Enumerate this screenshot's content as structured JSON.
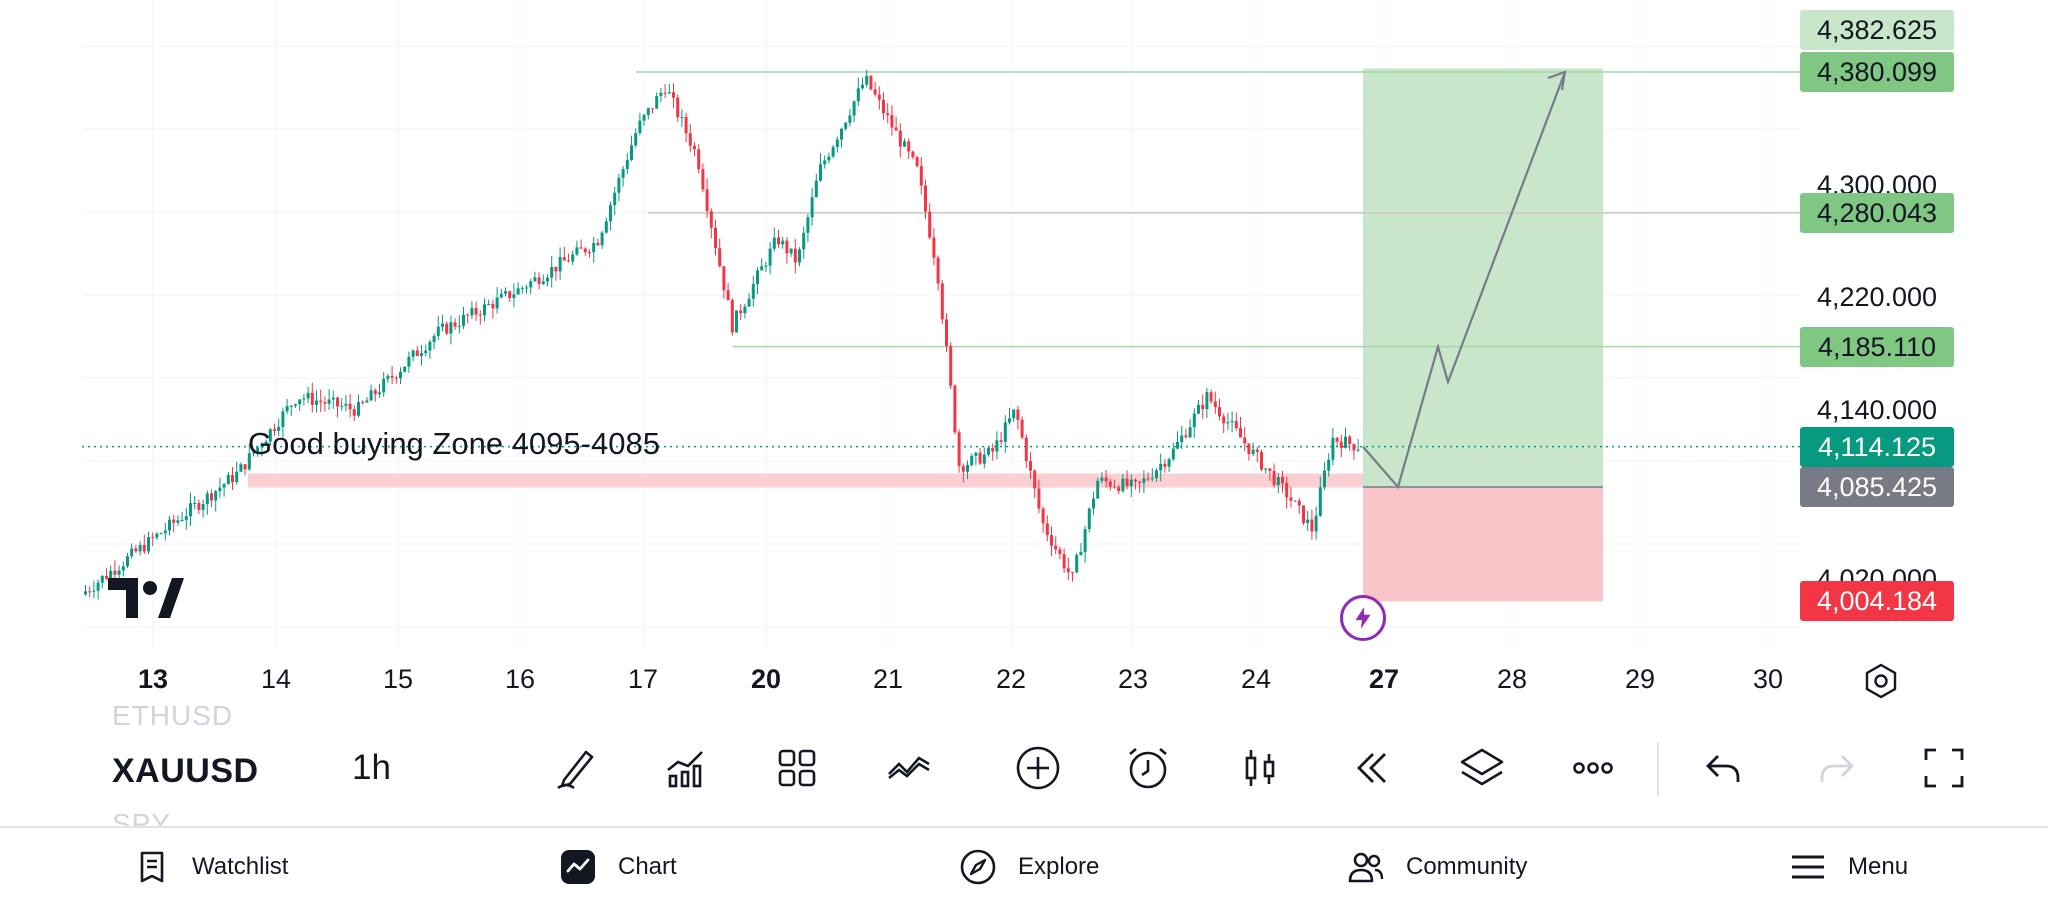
{
  "chart": {
    "symbol": "XAUUSD",
    "symbol_prev": "ETHUSD",
    "symbol_next": "SPY",
    "interval": "1h",
    "annotation": "Good buying Zone 4095-4085",
    "price_axis_plain": [
      {
        "text": "4,300.000",
        "price": 4300
      },
      {
        "text": "4,220.000",
        "price": 4220
      },
      {
        "text": "4,140.000",
        "price": 4140
      },
      {
        "text": "4,020.000",
        "price": 4020
      }
    ],
    "price_tags": [
      {
        "text": "4,382.625",
        "price": 4382.625,
        "bg": "#c8e6c9",
        "fg": "#131722"
      },
      {
        "text": "4,380.099",
        "price": 4380.099,
        "bg": "#81c784",
        "fg": "#131722"
      },
      {
        "text": "4,280.043",
        "price": 4280.043,
        "bg": "#81c784",
        "fg": "#131722"
      },
      {
        "text": "4,185.110",
        "price": 4185.11,
        "bg": "#81c784",
        "fg": "#131722"
      },
      {
        "text": "4,114.125",
        "price": 4114.125,
        "bg": "#089981",
        "fg": "#ffffff"
      },
      {
        "text": "4,085.425",
        "price": 4085.425,
        "bg": "#787b86",
        "fg": "#ffffff"
      },
      {
        "text": "4,004.184",
        "price": 4004.184,
        "bg": "#f23645",
        "fg": "#ffffff"
      }
    ],
    "time_labels": [
      {
        "text": "13",
        "bold": true
      },
      {
        "text": "14",
        "bold": false
      },
      {
        "text": "15",
        "bold": false
      },
      {
        "text": "16",
        "bold": false
      },
      {
        "text": "17",
        "bold": false
      },
      {
        "text": "20",
        "bold": true
      },
      {
        "text": "21",
        "bold": false
      },
      {
        "text": "22",
        "bold": false
      },
      {
        "text": "23",
        "bold": false
      },
      {
        "text": "24",
        "bold": false
      },
      {
        "text": "27",
        "bold": true
      },
      {
        "text": "28",
        "bold": false
      },
      {
        "text": "29",
        "bold": false
      },
      {
        "text": "30",
        "bold": false
      }
    ],
    "colors": {
      "up": "#089981",
      "down": "#f23645",
      "target_zone": "#c8e6c9",
      "stop_zone": "#f9c5c8",
      "buy_zone": "#fbd0d4",
      "level_line": "#a5d6a7",
      "current_price": "#089981",
      "path": "#787b86",
      "flash": "#8e2cb5"
    }
  },
  "toolbar": {
    "tools": [
      {
        "name": "drawing-tool-icon"
      },
      {
        "name": "indicators-icon"
      },
      {
        "name": "layouts-icon"
      },
      {
        "name": "compare-icon"
      },
      {
        "name": "add-icon"
      },
      {
        "name": "alert-icon"
      },
      {
        "name": "chart-type-icon"
      },
      {
        "name": "replay-icon"
      },
      {
        "name": "layers-icon"
      },
      {
        "name": "more-icon"
      },
      {
        "name": "undo-icon"
      },
      {
        "name": "redo-icon"
      },
      {
        "name": "fullscreen-icon"
      }
    ]
  },
  "nav": {
    "items": [
      {
        "label": "Watchlist",
        "icon": "watchlist-icon"
      },
      {
        "label": "Chart",
        "icon": "chart-icon"
      },
      {
        "label": "Explore",
        "icon": "compass-icon"
      },
      {
        "label": "Community",
        "icon": "community-icon"
      },
      {
        "label": "Menu",
        "icon": "menu-icon"
      }
    ]
  }
}
